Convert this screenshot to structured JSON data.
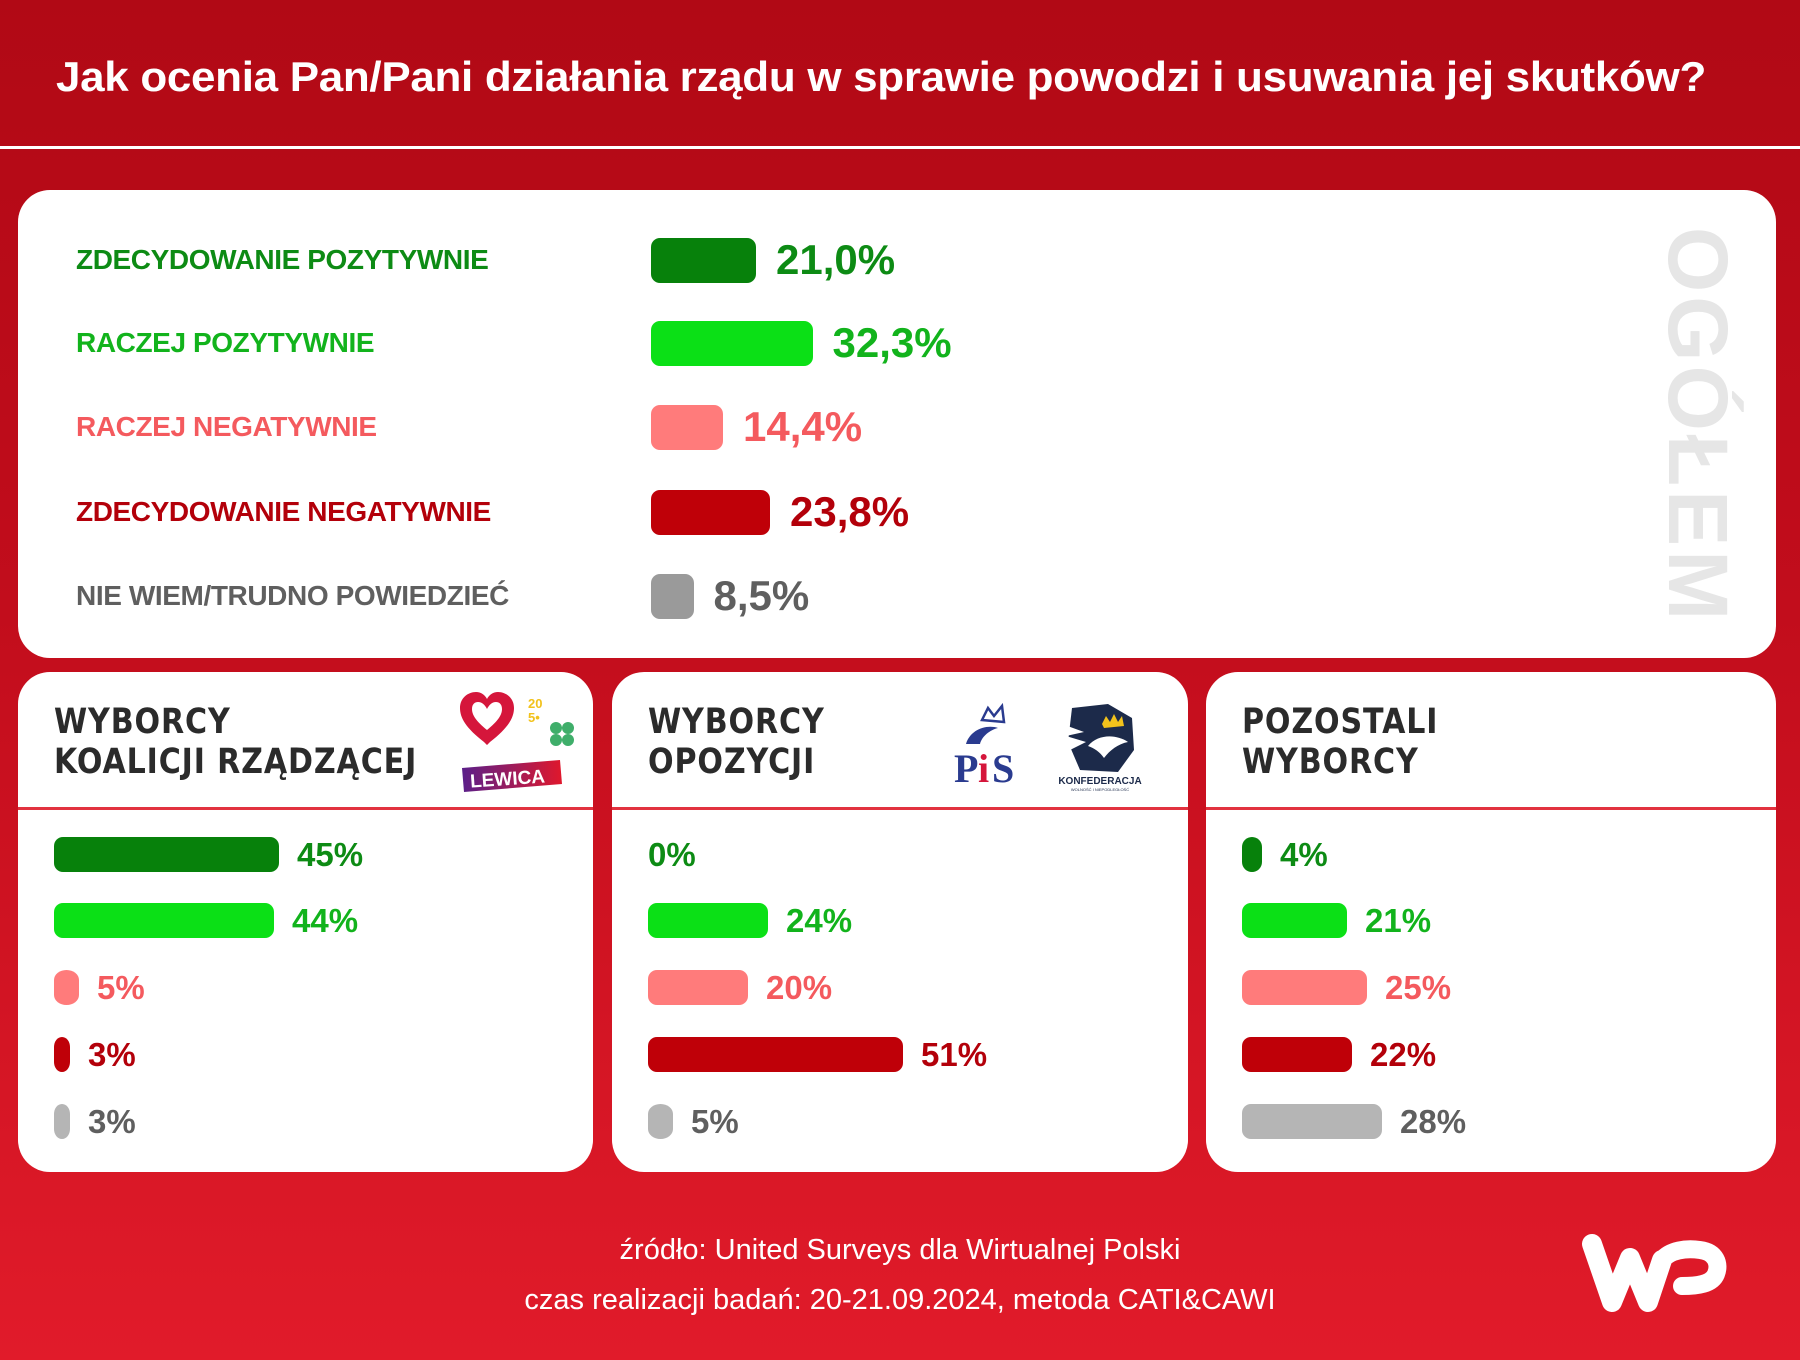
{
  "title": "Jak ocenia Pan/Pani działania rządu w sprawie powodzi i usuwania jej skutków?",
  "colors": {
    "strongly_positive": "#07810b",
    "rather_positive": "#0be016",
    "rather_negative": "#ff7b7b",
    "strongly_negative": "#bf0008",
    "dont_know": "#9a9a9a",
    "dont_know_small": "#b5b5b5"
  },
  "label_colors": {
    "strongly_positive": "#0d8b14",
    "rather_positive": "#12b31c",
    "rather_negative": "#f45a5e",
    "strongly_negative": "#b3000a",
    "dont_know": "#5f5f5f"
  },
  "chart_data": [
    {
      "type": "bar",
      "orientation": "horizontal",
      "title": "OGÓŁEM",
      "categories": [
        "ZDECYDOWANIE POZYTYWNIE",
        "RACZEJ POZYTYWNIE",
        "RACZEJ NEGATYWNIE",
        "ZDECYDOWANIE NEGATYWNIE",
        "NIE WIEM/TRUDNO POWIEDZIEĆ"
      ],
      "keys": [
        "strongly_positive",
        "rather_positive",
        "rather_negative",
        "strongly_negative",
        "dont_know"
      ],
      "values": [
        21.0,
        32.3,
        14.4,
        23.8,
        8.5
      ],
      "value_labels": [
        "21,0%",
        "32,3%",
        "14,4%",
        "23,8%",
        "8,5%"
      ],
      "unit": "%"
    },
    {
      "type": "bar",
      "orientation": "horizontal",
      "title": "WYBORCY KOALICJI RZĄDZĄCEJ",
      "title_lines": [
        "WYBORCY",
        "KOALICJI RZĄDZĄCEJ"
      ],
      "logos": [
        "heart-logo",
        "polska-2050-logo",
        "psl-clover-logo",
        "lewica-logo"
      ],
      "lewica_text": "LEWICA",
      "keys": [
        "strongly_positive",
        "rather_positive",
        "rather_negative",
        "strongly_negative",
        "dont_know_small"
      ],
      "values": [
        45,
        44,
        5,
        3,
        3
      ],
      "value_labels": [
        "45%",
        "44%",
        "5%",
        "3%",
        "3%"
      ],
      "unit": "%"
    },
    {
      "type": "bar",
      "orientation": "horizontal",
      "title": "WYBORCY OPOZYCJI",
      "title_lines": [
        "WYBORCY",
        "OPOZYCJI"
      ],
      "logos": [
        "pis-logo",
        "konfederacja-logo"
      ],
      "pis_text": "PiS",
      "konfederacja_text": "KONFEDERACJA",
      "konfederacja_subtext": "WOLNOŚĆ I NIEPODLEGŁOŚĆ",
      "keys": [
        "strongly_positive",
        "rather_positive",
        "rather_negative",
        "strongly_negative",
        "dont_know_small"
      ],
      "values": [
        0,
        24,
        20,
        51,
        5
      ],
      "value_labels": [
        "0%",
        "24%",
        "20%",
        "51%",
        "5%"
      ],
      "unit": "%"
    },
    {
      "type": "bar",
      "orientation": "horizontal",
      "title": "POZOSTALI WYBORCY",
      "title_lines": [
        "POZOSTALI",
        "WYBORCY"
      ],
      "keys": [
        "strongly_positive",
        "rather_positive",
        "rather_negative",
        "strongly_negative",
        "dont_know_small"
      ],
      "values": [
        4,
        21,
        25,
        22,
        28
      ],
      "value_labels": [
        "4%",
        "21%",
        "25%",
        "22%",
        "28%"
      ],
      "unit": "%"
    }
  ],
  "footer": {
    "source": "źródło: United Surveys dla Wirtualnej Polski",
    "date": "czas realizacji badań: 20-21.09.2024, metoda CATI&CAWI"
  }
}
